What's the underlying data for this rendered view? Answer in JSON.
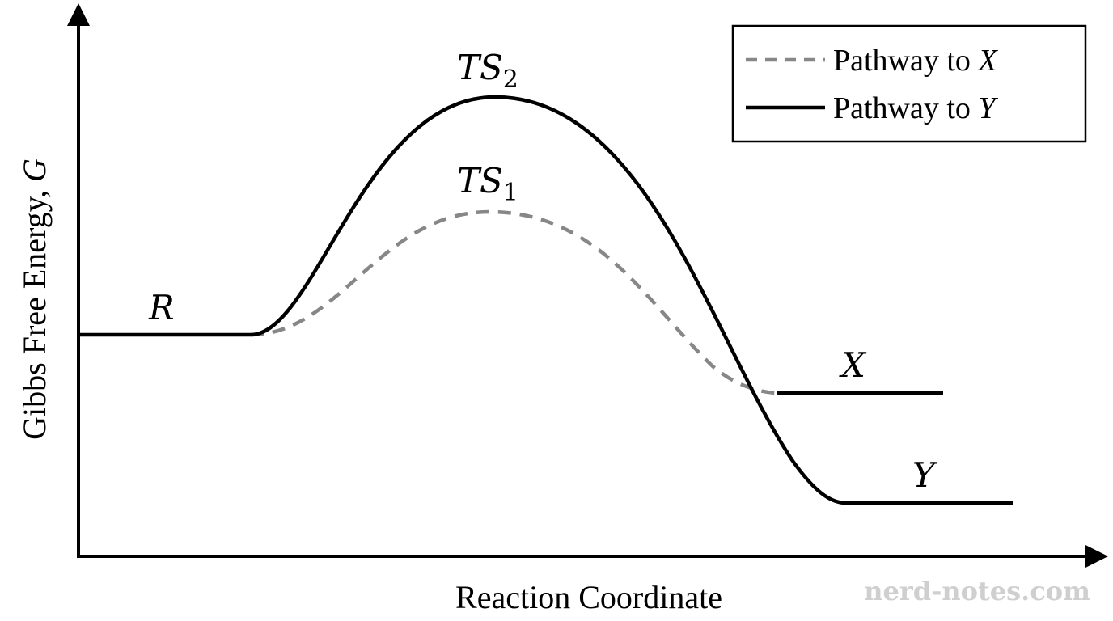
{
  "axes": {
    "y_title_main": "Gibbs Free Energy, ",
    "y_title_var": "G",
    "x_title": "Reaction Coordinate"
  },
  "labels": {
    "reactant": "R",
    "ts1_main": "TS",
    "ts1_sub": "1",
    "ts2_main": "TS",
    "ts2_sub": "2",
    "product_x": "X",
    "product_y": "Y"
  },
  "legend": {
    "x_text": "Pathway to ",
    "x_var": "X",
    "y_text": "Pathway to ",
    "y_var": "Y"
  },
  "colors": {
    "axis": "#000000",
    "pathway_x": "#878787",
    "pathway_y": "#000000"
  },
  "watermark": "nerd-notes.com"
}
